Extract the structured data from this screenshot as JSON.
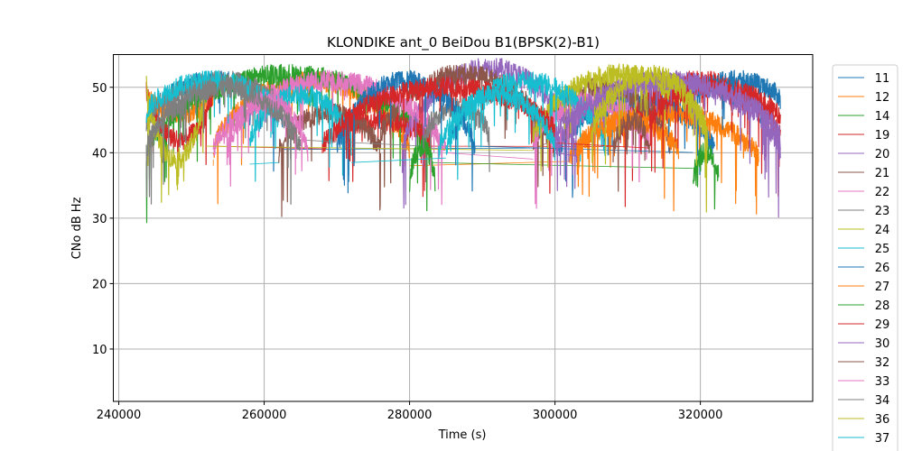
{
  "chart_data": {
    "type": "line",
    "title": "KLONDIKE ant_0 BeiDou B1(BPSK(2)-B1)",
    "xlabel": "Time (s)",
    "ylabel": "CNo dB Hz",
    "xlim": [
      239250,
      335450
    ],
    "ylim": [
      2,
      55
    ],
    "xticks": [
      240000,
      260000,
      280000,
      300000,
      320000
    ],
    "xtick_labels": [
      "240000",
      "260000",
      "280000",
      "300000",
      "320000"
    ],
    "yticks": [
      10,
      20,
      30,
      40,
      50
    ],
    "ytick_labels": [
      "10",
      "20",
      "30",
      "40",
      "50"
    ],
    "grid": true,
    "legend_position": "outside-right",
    "legend_truncated_entry": "4",
    "series": [
      {
        "name": "11",
        "color": "#1f77b4",
        "passes": [
          [
            243800,
            262500,
            44,
            51
          ],
          [
            300500,
            322000,
            40,
            48
          ]
        ],
        "link_level": 40.5
      },
      {
        "name": "12",
        "color": "#ff7f0e",
        "passes": [
          [
            244000,
            253000,
            49,
            46
          ],
          [
            253000,
            280000,
            40,
            51
          ],
          [
            302000,
            328000,
            39,
            46
          ]
        ],
        "link_level": 38
      },
      {
        "name": "14",
        "color": "#2ca02c",
        "passes": [
          [
            243800,
            283000,
            40,
            52
          ],
          [
            319000,
            322500,
            36,
            40
          ]
        ],
        "link_level": 38.5
      },
      {
        "name": "19",
        "color": "#d62728",
        "passes": [
          [
            243800,
            253000,
            50,
            42
          ],
          [
            268000,
            283000,
            41,
            45
          ],
          [
            309000,
            331000,
            42,
            51
          ]
        ],
        "link_level": 41
      },
      {
        "name": "20",
        "color": "#9467bd",
        "passes": [
          [
            279000,
            303000,
            40,
            53
          ],
          [
            300000,
            331000,
            40,
            51
          ]
        ],
        "link_level": 39.5
      },
      {
        "name": "21",
        "color": "#8c564b",
        "passes": [
          [
            262000,
            276000,
            40,
            46
          ],
          [
            276000,
            299000,
            42,
            52
          ],
          [
            297000,
            316000,
            40,
            50
          ]
        ],
        "link_level": 41.5
      },
      {
        "name": "22",
        "color": "#e377c2",
        "passes": [
          [
            253000,
            285000,
            40,
            51
          ],
          [
            297000,
            313000,
            41,
            48
          ]
        ],
        "link_level": 40
      },
      {
        "name": "23",
        "color": "#7f7f7f",
        "passes": [
          [
            243800,
            264000,
            44,
            51
          ],
          [
            282000,
            291000,
            42,
            47
          ]
        ],
        "link_level": 42
      },
      {
        "name": "24",
        "color": "#bcbd22",
        "passes": [
          [
            243800,
            252000,
            51,
            39
          ],
          [
            297000,
            321000,
            42,
            52
          ]
        ],
        "link_level": 41
      },
      {
        "name": "25",
        "color": "#17becf",
        "passes": [
          [
            243800,
            262000,
            46,
            51
          ],
          [
            258000,
            272000,
            41,
            49
          ],
          [
            285000,
            307000,
            40,
            51
          ]
        ],
        "link_level": 38.5
      },
      {
        "name": "26",
        "color": "#1f77b4",
        "passes": [
          [
            270000,
            289000,
            40,
            51
          ],
          [
            319000,
            331000,
            48,
            51
          ]
        ],
        "link_level": 41
      },
      {
        "name": "27",
        "color": "#ff7f0e",
        "passes": [
          [
            303000,
            317000,
            40,
            45
          ]
        ],
        "link_level": 42
      },
      {
        "name": "28",
        "color": "#2ca02c",
        "passes": [
          [
            280000,
            283500,
            35,
            41
          ]
        ],
        "link_level": 38
      },
      {
        "name": "29",
        "color": "#d62728",
        "passes": [
          [
            270000,
            300000,
            43,
            50
          ],
          [
            313000,
            331000,
            45,
            50
          ]
        ],
        "link_level": 41.5
      },
      {
        "name": "30",
        "color": "#9467bd",
        "passes": [
          [
            300000,
            331000,
            42,
            51
          ]
        ],
        "link_level": 40.5
      },
      {
        "name": "32",
        "color": "#8c564b",
        "passes": [
          [
            308000,
            313000,
            40,
            45
          ]
        ],
        "link_level": 42
      },
      {
        "name": "33",
        "color": "#e377c2",
        "passes": [
          [
            255000,
            266000,
            40,
            48
          ]
        ],
        "link_level": 40.5
      },
      {
        "name": "34",
        "color": "#7f7f7f",
        "passes": [
          [
            243800,
            265000,
            40,
            50
          ]
        ],
        "link_level": 40.5
      },
      {
        "name": "36",
        "color": "#bcbd22",
        "passes": [
          [
            305000,
            321000,
            42,
            52
          ]
        ],
        "link_level": 41.5
      },
      {
        "name": "37",
        "color": "#17becf",
        "passes": [
          [
            284000,
            300000,
            40,
            49
          ]
        ],
        "link_level": 40
      }
    ]
  }
}
